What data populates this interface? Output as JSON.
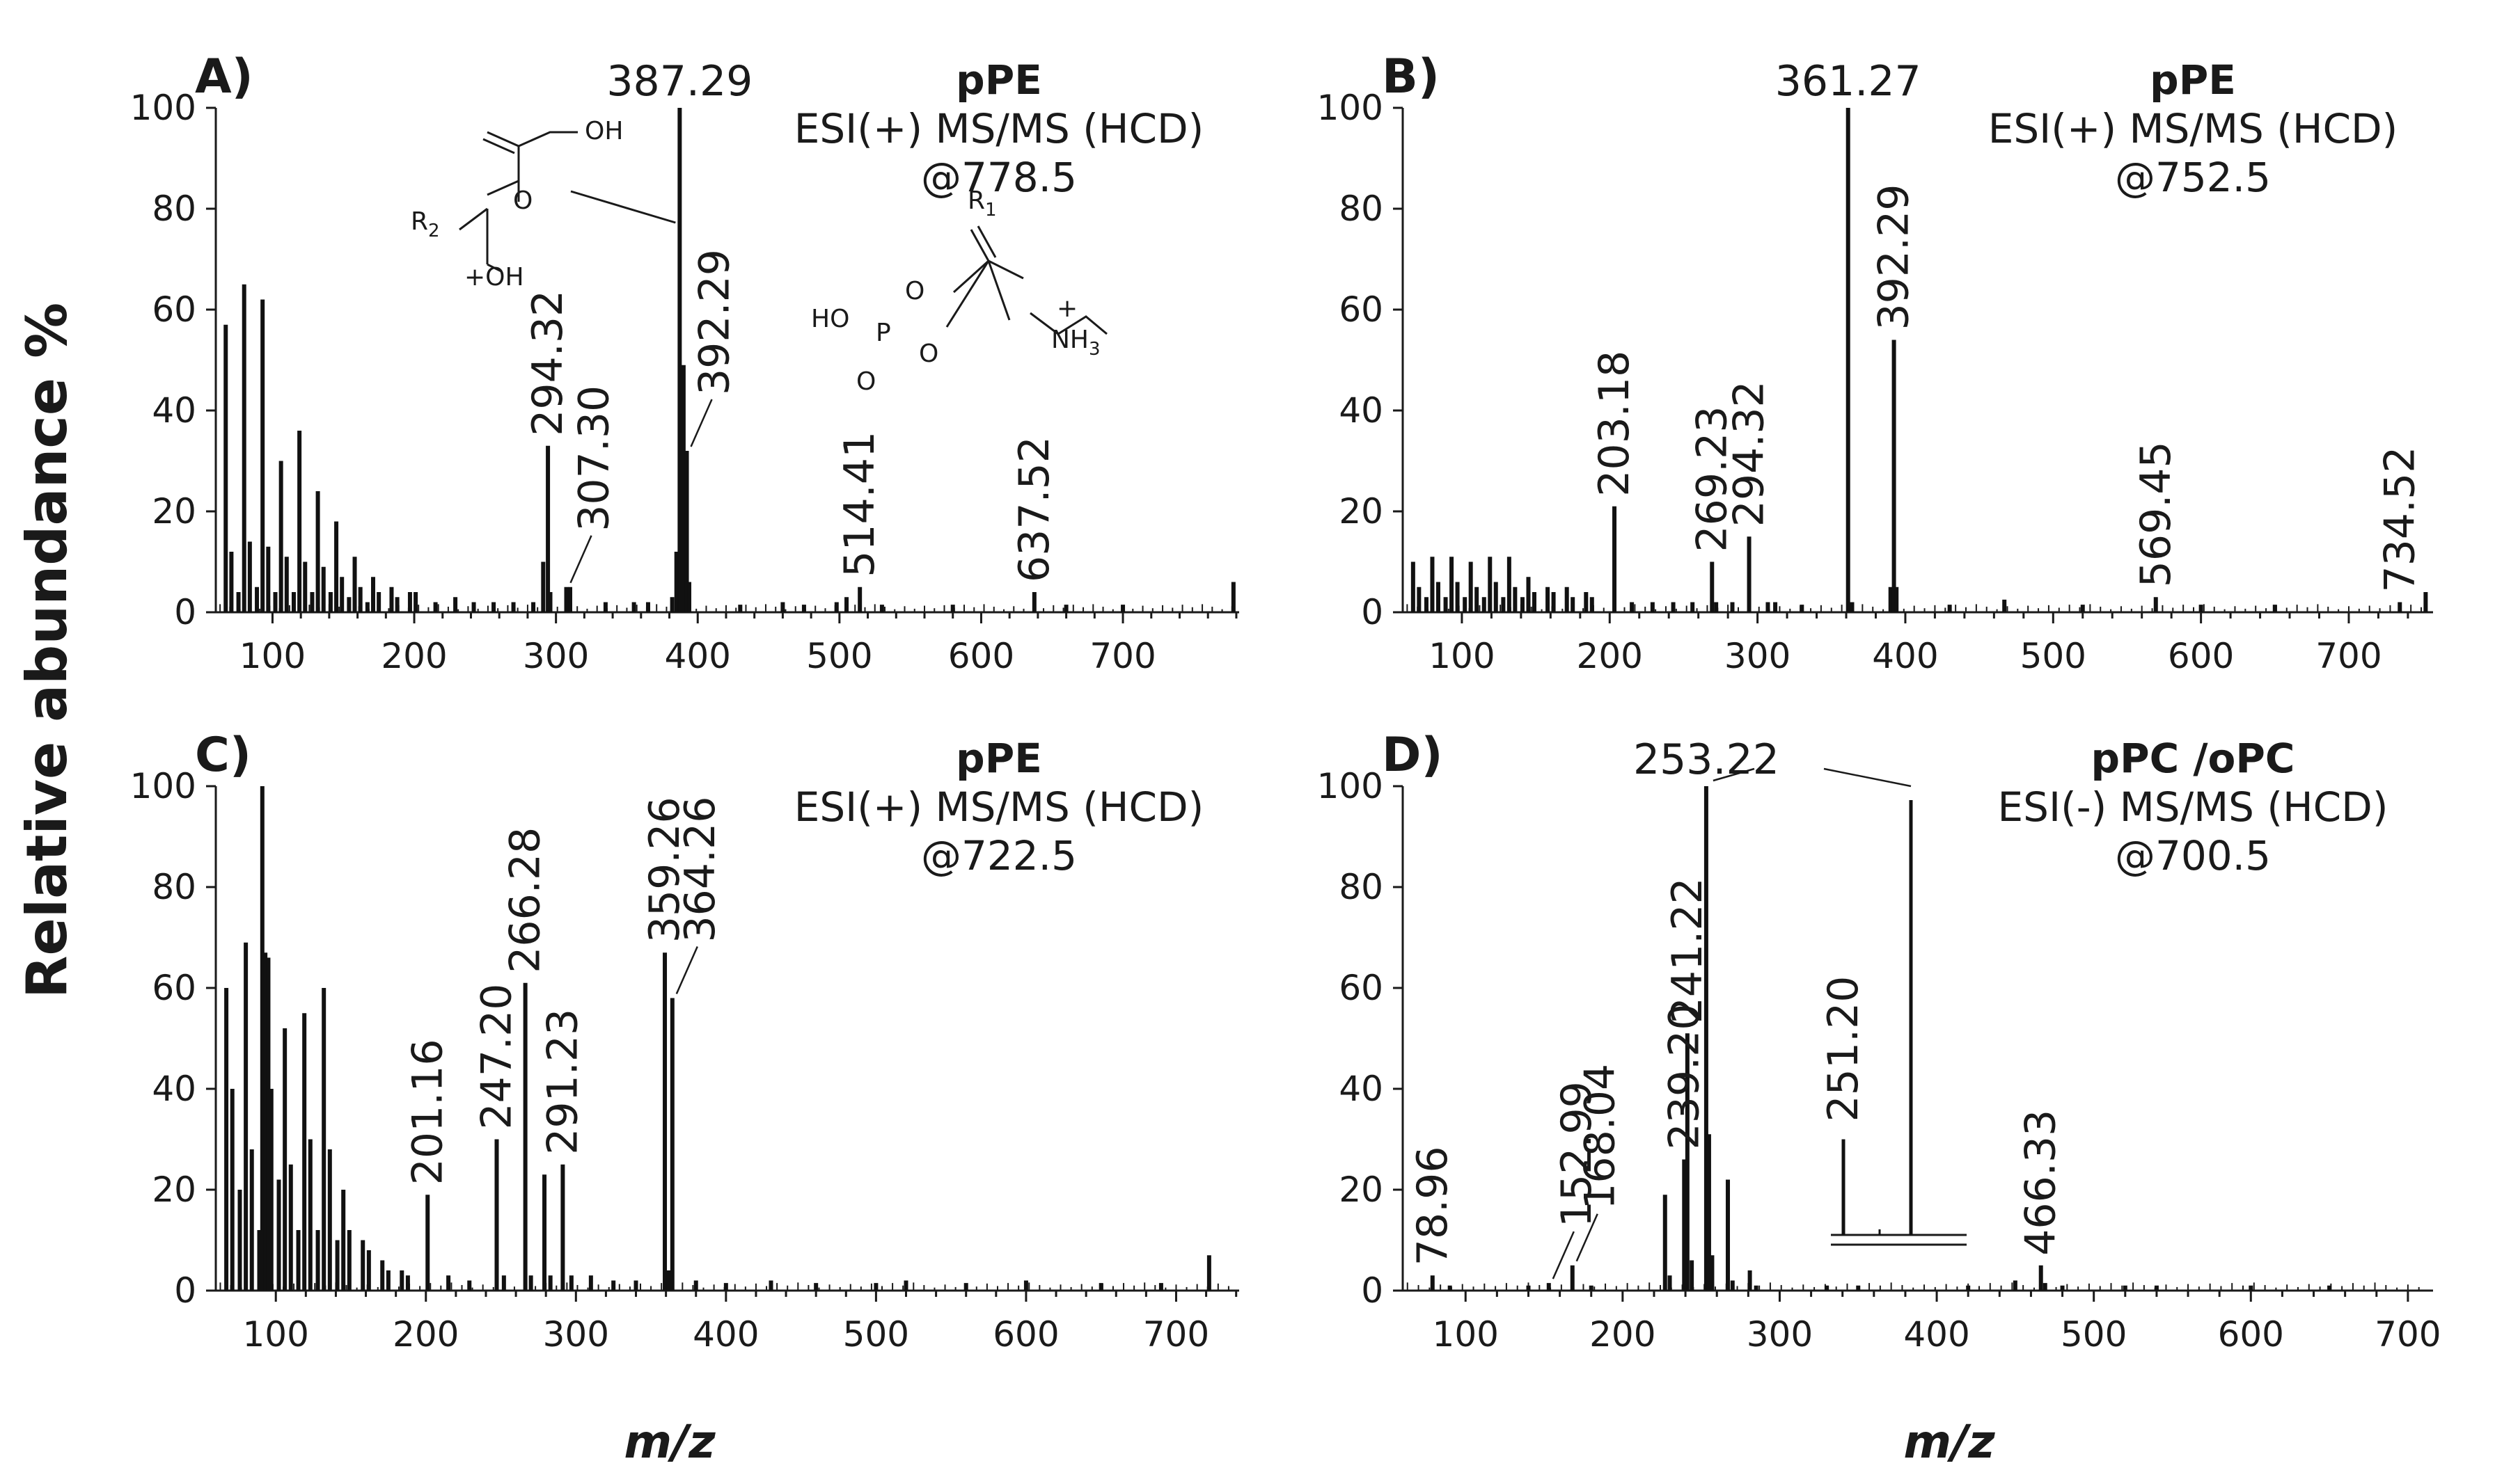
{
  "chart_data": {
    "type": "bar",
    "ylabel": "Relative abundance %",
    "xlabel": "m/z",
    "panels": [
      {
        "id": "A",
        "letter": "A)",
        "title_lines": [
          "pPE",
          "ESI(+) MS/MS (HCD)",
          "@778.5"
        ],
        "xlim": [
          60,
          782
        ],
        "ylim": [
          0,
          100
        ],
        "xticks": [
          100,
          200,
          300,
          400,
          500,
          600,
          700
        ],
        "yticks": [
          0,
          20,
          40,
          60,
          80,
          100
        ],
        "peaks": [
          [
            67,
            57
          ],
          [
            71,
            12
          ],
          [
            76,
            4
          ],
          [
            80,
            65
          ],
          [
            84,
            14
          ],
          [
            89,
            5
          ],
          [
            93,
            62
          ],
          [
            97,
            13
          ],
          [
            102,
            4
          ],
          [
            106,
            30
          ],
          [
            110,
            11
          ],
          [
            115,
            4
          ],
          [
            119,
            36
          ],
          [
            123,
            10
          ],
          [
            128,
            4
          ],
          [
            132,
            24
          ],
          [
            136,
            9
          ],
          [
            141,
            4
          ],
          [
            145,
            18
          ],
          [
            149,
            7
          ],
          [
            154,
            3
          ],
          [
            158,
            11
          ],
          [
            162,
            5
          ],
          [
            167,
            2
          ],
          [
            171,
            7
          ],
          [
            175,
            4
          ],
          [
            184,
            5
          ],
          [
            188,
            3
          ],
          [
            197,
            4
          ],
          [
            201,
            4
          ],
          [
            215,
            2
          ],
          [
            229,
            3
          ],
          [
            242,
            2
          ],
          [
            256,
            2
          ],
          [
            270,
            2
          ],
          [
            284,
            2
          ],
          [
            291,
            10
          ],
          [
            294.32,
            33
          ],
          [
            296,
            4
          ],
          [
            307.3,
            5
          ],
          [
            310,
            5
          ],
          [
            335,
            2
          ],
          [
            355,
            2
          ],
          [
            365,
            2
          ],
          [
            382,
            3
          ],
          [
            385,
            12
          ],
          [
            387.29,
            100
          ],
          [
            388,
            40
          ],
          [
            390,
            49
          ],
          [
            392.29,
            32
          ],
          [
            394,
            6
          ],
          [
            430,
            1.5
          ],
          [
            460,
            2
          ],
          [
            475,
            1.5
          ],
          [
            498,
            2
          ],
          [
            505,
            3
          ],
          [
            514.41,
            5
          ],
          [
            530,
            1.5
          ],
          [
            580,
            1.5
          ],
          [
            637.52,
            4
          ],
          [
            660,
            1.5
          ],
          [
            700,
            1.5
          ],
          [
            778,
            6
          ]
        ],
        "labels": [
          {
            "text": "387.29",
            "x": 387.29,
            "y": 100,
            "orient": "horizontal"
          },
          {
            "text": "294.32",
            "x": 294.32,
            "y": 33,
            "orient": "vertical"
          },
          {
            "text": "307.30",
            "x": 307.3,
            "y": 5,
            "orient": "vertical",
            "leader": true
          },
          {
            "text": "392.29",
            "x": 392.29,
            "y": 32,
            "orient": "vertical",
            "leader": true
          },
          {
            "text": "514.41",
            "x": 514.41,
            "y": 5,
            "orient": "vertical"
          },
          {
            "text": "637.52",
            "x": 637.52,
            "y": 4,
            "orient": "vertical"
          }
        ]
      },
      {
        "id": "B",
        "letter": "B)",
        "title_lines": [
          "pPE",
          "ESI(+) MS/MS (HCD)",
          "@752.5"
        ],
        "xlim": [
          60,
          757
        ],
        "ylim": [
          0,
          100
        ],
        "xticks": [
          100,
          200,
          300,
          400,
          500,
          600,
          700
        ],
        "yticks": [
          0,
          20,
          40,
          60,
          80,
          100
        ],
        "peaks": [
          [
            67,
            10
          ],
          [
            71,
            5
          ],
          [
            76,
            3
          ],
          [
            80,
            11
          ],
          [
            84,
            6
          ],
          [
            89,
            3
          ],
          [
            93,
            11
          ],
          [
            97,
            6
          ],
          [
            102,
            3
          ],
          [
            106,
            10
          ],
          [
            110,
            5
          ],
          [
            115,
            3
          ],
          [
            119,
            11
          ],
          [
            123,
            6
          ],
          [
            128,
            3
          ],
          [
            132,
            11
          ],
          [
            136,
            5
          ],
          [
            141,
            3
          ],
          [
            145,
            7
          ],
          [
            149,
            4
          ],
          [
            158,
            5
          ],
          [
            162,
            4
          ],
          [
            171,
            5
          ],
          [
            175,
            3
          ],
          [
            184,
            4
          ],
          [
            188,
            3
          ],
          [
            203.18,
            21
          ],
          [
            215,
            2
          ],
          [
            229,
            2
          ],
          [
            243,
            2
          ],
          [
            256,
            2
          ],
          [
            269.23,
            10
          ],
          [
            272,
            2
          ],
          [
            283,
            2
          ],
          [
            294.32,
            15
          ],
          [
            307,
            2
          ],
          [
            312,
            2
          ],
          [
            330,
            1.5
          ],
          [
            361.27,
            100
          ],
          [
            364,
            2
          ],
          [
            390,
            5
          ],
          [
            392.29,
            54
          ],
          [
            394,
            5
          ],
          [
            430,
            1.5
          ],
          [
            467,
            2.5
          ],
          [
            520,
            1.5
          ],
          [
            569.45,
            3
          ],
          [
            600,
            1.5
          ],
          [
            650,
            1.5
          ],
          [
            734.52,
            2
          ],
          [
            752,
            4
          ]
        ],
        "labels": [
          {
            "text": "361.27",
            "x": 361.27,
            "y": 100,
            "orient": "horizontal"
          },
          {
            "text": "392.29",
            "x": 392.29,
            "y": 54,
            "orient": "vertical"
          },
          {
            "text": "203.18",
            "x": 203.18,
            "y": 21,
            "orient": "vertical"
          },
          {
            "text": "269.23",
            "x": 269.23,
            "y": 10,
            "orient": "vertical"
          },
          {
            "text": "294.32",
            "x": 294.32,
            "y": 15,
            "orient": "vertical"
          },
          {
            "text": "569.45",
            "x": 569.45,
            "y": 3,
            "orient": "vertical"
          },
          {
            "text": "734.52",
            "x": 734.52,
            "y": 2,
            "orient": "vertical"
          }
        ]
      },
      {
        "id": "C",
        "letter": "C)",
        "title_lines": [
          "pPE",
          "ESI(+) MS/MS (HCD)",
          "@722.5"
        ],
        "xlim": [
          60,
          742
        ],
        "ylim": [
          0,
          100
        ],
        "xticks": [
          100,
          200,
          300,
          400,
          500,
          600,
          700
        ],
        "yticks": [
          0,
          20,
          40,
          60,
          80,
          100
        ],
        "peaks": [
          [
            67,
            60
          ],
          [
            71,
            40
          ],
          [
            76,
            20
          ],
          [
            80,
            69
          ],
          [
            84,
            28
          ],
          [
            89,
            12
          ],
          [
            91,
            100
          ],
          [
            93,
            67
          ],
          [
            95,
            66
          ],
          [
            97,
            40
          ],
          [
            102,
            22
          ],
          [
            106,
            52
          ],
          [
            110,
            25
          ],
          [
            115,
            12
          ],
          [
            119,
            55
          ],
          [
            123,
            30
          ],
          [
            128,
            12
          ],
          [
            132,
            60
          ],
          [
            136,
            28
          ],
          [
            141,
            10
          ],
          [
            145,
            20
          ],
          [
            149,
            12
          ],
          [
            158,
            10
          ],
          [
            162,
            8
          ],
          [
            171,
            6
          ],
          [
            175,
            4
          ],
          [
            184,
            4
          ],
          [
            188,
            3
          ],
          [
            201.16,
            19
          ],
          [
            215,
            3
          ],
          [
            229,
            2
          ],
          [
            247.2,
            30
          ],
          [
            252,
            3
          ],
          [
            266.28,
            61
          ],
          [
            270,
            3
          ],
          [
            279,
            23
          ],
          [
            283,
            3
          ],
          [
            291.23,
            25
          ],
          [
            297,
            3
          ],
          [
            310,
            3
          ],
          [
            325,
            2
          ],
          [
            340,
            2
          ],
          [
            359.26,
            67
          ],
          [
            362,
            4
          ],
          [
            364.26,
            58
          ],
          [
            380,
            2
          ],
          [
            400,
            1.5
          ],
          [
            430,
            2
          ],
          [
            460,
            1.5
          ],
          [
            500,
            1.5
          ],
          [
            520,
            2
          ],
          [
            560,
            1.5
          ],
          [
            600,
            2
          ],
          [
            650,
            1.5
          ],
          [
            690,
            1.5
          ],
          [
            722,
            7
          ]
        ],
        "labels": [
          {
            "text": "201.16",
            "x": 201.16,
            "y": 19,
            "orient": "vertical"
          },
          {
            "text": "247.20",
            "x": 247.2,
            "y": 30,
            "orient": "vertical"
          },
          {
            "text": "266.28",
            "x": 266.28,
            "y": 61,
            "orient": "vertical"
          },
          {
            "text": "291.23",
            "x": 291.23,
            "y": 25,
            "orient": "vertical"
          },
          {
            "text": "359.26",
            "x": 359.26,
            "y": 67,
            "orient": "vertical"
          },
          {
            "text": "364.26",
            "x": 364.26,
            "y": 58,
            "orient": "vertical",
            "leader": true
          }
        ]
      },
      {
        "id": "D",
        "letter": "D)",
        "title_lines": [
          "pPC /oPC",
          "ESI(-) MS/MS (HCD)",
          "@700.5"
        ],
        "xlim": [
          60,
          716
        ],
        "ylim": [
          0,
          100
        ],
        "xticks": [
          100,
          200,
          300,
          400,
          500,
          600,
          700
        ],
        "yticks": [
          0,
          20,
          40,
          60,
          80,
          100
        ],
        "peaks": [
          [
            78.96,
            3
          ],
          [
            90,
            1
          ],
          [
            140,
            1
          ],
          [
            152.99,
            1.5
          ],
          [
            168.04,
            5
          ],
          [
            180,
            1
          ],
          [
            227,
            19
          ],
          [
            230,
            3
          ],
          [
            239.2,
            26
          ],
          [
            241.22,
            51
          ],
          [
            244,
            6
          ],
          [
            253.22,
            100
          ],
          [
            255,
            31
          ],
          [
            257,
            7
          ],
          [
            267,
            22
          ],
          [
            270,
            2
          ],
          [
            281,
            4
          ],
          [
            285,
            1
          ],
          [
            330,
            1
          ],
          [
            350,
            1
          ],
          [
            420,
            1
          ],
          [
            450,
            2
          ],
          [
            466.33,
            5
          ],
          [
            469,
            1.5
          ],
          [
            480,
            1
          ],
          [
            520,
            1
          ],
          [
            540,
            1
          ],
          [
            600,
            1
          ],
          [
            650,
            1
          ]
        ],
        "labels": [
          {
            "text": "253.22",
            "x": 253.22,
            "y": 100,
            "orient": "horizontal"
          },
          {
            "text": "78.96",
            "x": 78.96,
            "y": 3,
            "orient": "vertical"
          },
          {
            "text": "152.99",
            "x": 152.99,
            "y": 1.5,
            "orient": "vertical",
            "leader": true
          },
          {
            "text": "168.04",
            "x": 168.04,
            "y": 5,
            "orient": "vertical",
            "leader": true
          },
          {
            "text": "239.20",
            "x": 239.2,
            "y": 26,
            "orient": "vertical"
          },
          {
            "text": "241.22",
            "x": 241.22,
            "y": 51,
            "orient": "vertical"
          },
          {
            "text": "466.33",
            "x": 466.33,
            "y": 5,
            "orient": "vertical"
          }
        ],
        "inset": {
          "main_peak": "253.22",
          "main_value": 100,
          "side_peak": "251.20",
          "side_value": 22
        }
      }
    ]
  },
  "structures": {
    "hydroxyl_label": "OH",
    "ester_r": "R",
    "ester_r_sub": "2",
    "oh_plus": "+OH",
    "phosphate_ho": "HO",
    "phosphate_p": "P",
    "phosphate_o": "O",
    "amine": "NH",
    "amine_sub": "3",
    "amine_charge": "+",
    "chain_r": "R",
    "chain_r_sub": "1"
  }
}
